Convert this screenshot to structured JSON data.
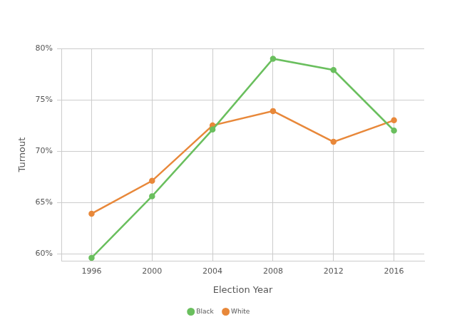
{
  "chart_data": {
    "type": "line",
    "x_label": "Election Year",
    "y_label": "Turnout",
    "categories": [
      "1996",
      "2000",
      "2004",
      "2008",
      "2012",
      "2016"
    ],
    "series": [
      {
        "name": "Black",
        "color": "#6abf5e",
        "values": [
          59.6,
          65.6,
          72.1,
          79.0,
          77.9,
          72.0
        ],
        "marker": "circle"
      },
      {
        "name": "White",
        "color": "#e8883a",
        "values": [
          63.9,
          67.1,
          72.5,
          73.9,
          70.9,
          73.0
        ],
        "marker": "circle"
      }
    ],
    "ylim": [
      59.3,
      80
    ],
    "yticks": [
      {
        "value": 60,
        "label": "60%"
      },
      {
        "value": 65,
        "label": "65%"
      },
      {
        "value": 70,
        "label": "70%"
      },
      {
        "value": 75,
        "label": "75%"
      },
      {
        "value": 80,
        "label": "80%"
      }
    ],
    "grid": true,
    "legend": "bottom"
  }
}
